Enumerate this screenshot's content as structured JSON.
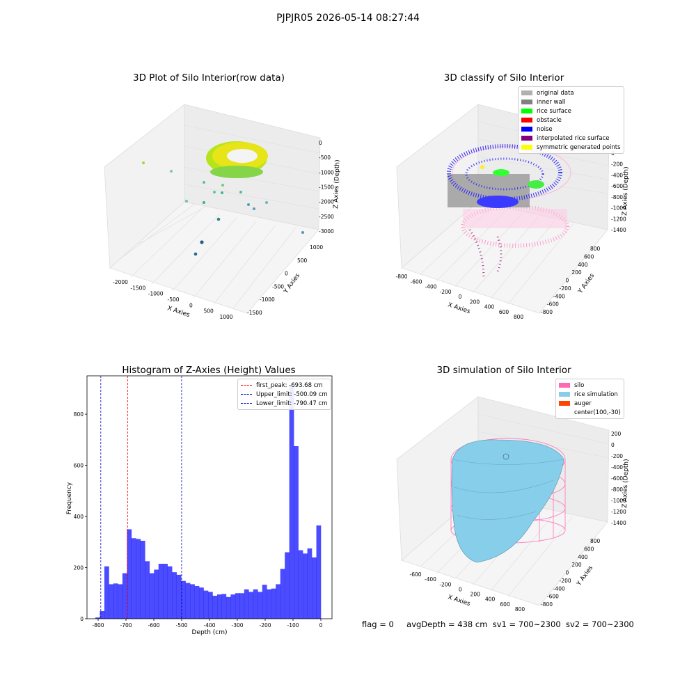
{
  "suptitle": "PJPJR05 2026-05-14 08:27:44",
  "panels": {
    "raw": {
      "title": "3D Plot of Silo Interior(row data)",
      "xlabel": "X Axies",
      "ylabel": "Y Axies",
      "zlabel": "Z Axies (Depth)",
      "xticks": [
        "-2000",
        "-1500",
        "-1000",
        "-500",
        "0",
        "500",
        "1000"
      ],
      "yticks": [
        "-1500",
        "-1000",
        "-500",
        "0",
        "500",
        "1000"
      ],
      "zticks": [
        "0",
        "-500",
        "-1000",
        "-1500",
        "-2000",
        "-2500",
        "-3000"
      ]
    },
    "classify": {
      "title": "3D classify of Silo Interior",
      "xlabel": "X Axies",
      "ylabel": "Y Axies",
      "zlabel": "Z Axies (Depth)",
      "xticks": [
        "-800",
        "-600",
        "-400",
        "-200",
        "0",
        "200",
        "400",
        "600",
        "800"
      ],
      "yticks": [
        "-800",
        "-600",
        "-400",
        "-200",
        "0",
        "200",
        "400",
        "600",
        "800"
      ],
      "zticks": [
        "0",
        "-200",
        "-400",
        "-600",
        "-800",
        "-1000",
        "-1200",
        "-1400"
      ],
      "legend": [
        {
          "label": "original data",
          "color": "#b0b0b0"
        },
        {
          "label": "inner wall",
          "color": "#808080"
        },
        {
          "label": "rice surface",
          "color": "#00ff00"
        },
        {
          "label": "obstacle",
          "color": "#ff0000"
        },
        {
          "label": "noise",
          "color": "#0000ff"
        },
        {
          "label": "interpolated rice surface",
          "color": "#800080"
        },
        {
          "label": "symmetric generated points",
          "color": "#ffff00"
        }
      ]
    },
    "simulation": {
      "title": "3D simulation of Silo Interior",
      "xlabel": "X Axies",
      "ylabel": "Y Axies",
      "zlabel": "Z Axies (Depth)",
      "xticks": [
        "-600",
        "-400",
        "-200",
        "0",
        "200",
        "400",
        "600",
        "800"
      ],
      "yticks": [
        "-800",
        "-600",
        "-400",
        "-200",
        "0",
        "200",
        "400",
        "600",
        "800"
      ],
      "zticks": [
        "200",
        "0",
        "-200",
        "-400",
        "-600",
        "-800",
        "-1000",
        "-1200",
        "-1400"
      ],
      "legend": [
        {
          "label": "silo",
          "color": "#ff69b4"
        },
        {
          "label": "rice simulation",
          "color": "#87ceeb"
        },
        {
          "label": "auger",
          "color": "#ff4500"
        },
        {
          "label": "center(100,-30)",
          "color": ""
        }
      ]
    }
  },
  "chart_data": {
    "type": "bar",
    "title": "Histogram of Z-Axies (Height) Values",
    "xlabel": "Depth (cm)",
    "ylabel": "Frequency",
    "xlim": [
      -840,
      40
    ],
    "ylim": [
      0,
      950
    ],
    "xticks": [
      -800,
      -700,
      -600,
      -500,
      -400,
      -300,
      -200,
      -100,
      0
    ],
    "yticks": [
      0,
      200,
      400,
      600,
      800
    ],
    "bin_start": -810,
    "bin_width": 16.2,
    "values": [
      5,
      30,
      205,
      135,
      138,
      135,
      178,
      350,
      315,
      312,
      305,
      225,
      178,
      192,
      215,
      215,
      205,
      182,
      172,
      148,
      140,
      135,
      128,
      122,
      110,
      105,
      90,
      95,
      97,
      85,
      95,
      100,
      100,
      115,
      105,
      115,
      105,
      133,
      115,
      118,
      135,
      195,
      260,
      910,
      675,
      268,
      255,
      275,
      240,
      365
    ],
    "bar_color": "#0000ff",
    "vlines": [
      {
        "label": "first_peak: -693.68 cm",
        "x": -693.68,
        "color": "#ff0000"
      },
      {
        "label": "Upper_limit: -500.09 cm",
        "x": -500.09,
        "color": "#0000cc"
      },
      {
        "label": "Lower_limit: -790.47 cm",
        "x": -790.47,
        "color": "#0000cc"
      }
    ],
    "legend_position": "top-right"
  },
  "footer": {
    "flag": "flag = 0",
    "avg": "avgDepth = 438 cm",
    "sv1": "sv1 = 700~2300",
    "sv2": "sv2 = 700~2300"
  }
}
